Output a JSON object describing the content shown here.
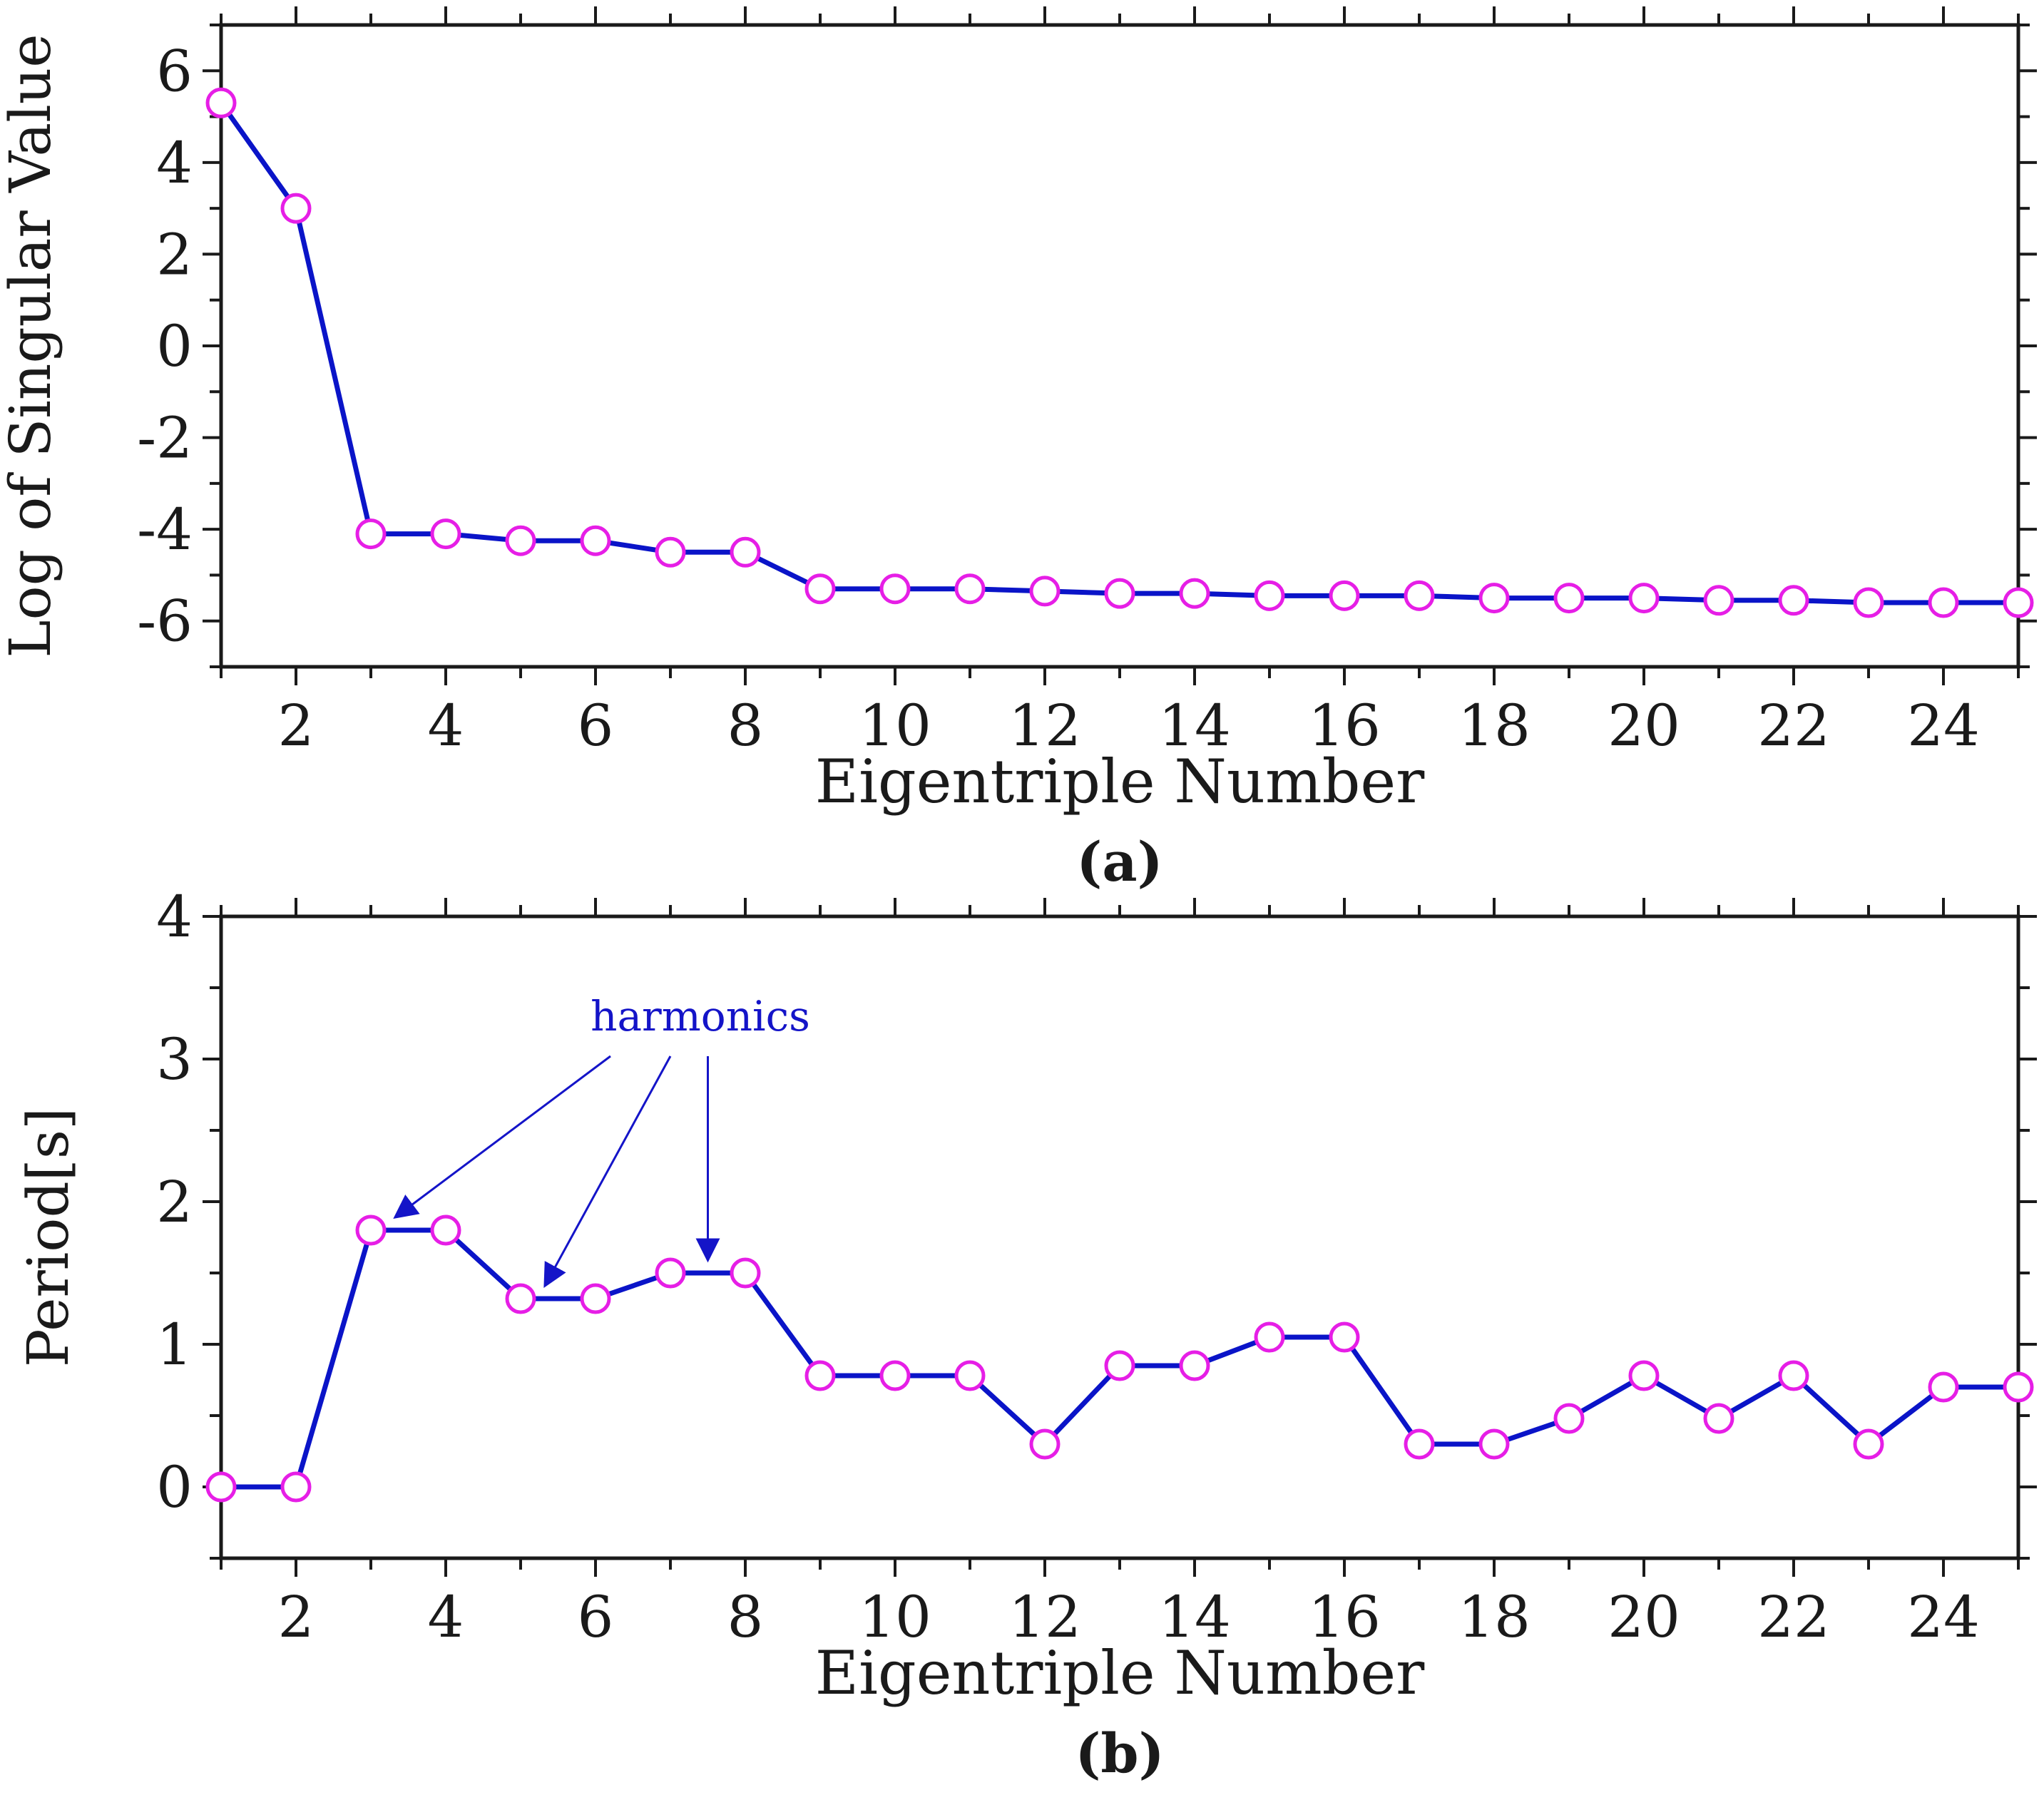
{
  "chart_data": [
    {
      "type": "line",
      "panel_label": "(a)",
      "xlabel": "Eigentriple Number",
      "ylabel": "Log of Singular Value",
      "x": [
        1,
        2,
        3,
        4,
        5,
        6,
        7,
        8,
        9,
        10,
        11,
        12,
        13,
        14,
        15,
        16,
        17,
        18,
        19,
        20,
        21,
        22,
        23,
        24,
        25
      ],
      "series": [
        {
          "name": "Log of Singular Value",
          "values": [
            5.3,
            3.0,
            -4.1,
            -4.1,
            -4.25,
            -4.25,
            -4.5,
            -4.5,
            -5.3,
            -5.3,
            -5.3,
            -5.35,
            -5.4,
            -5.4,
            -5.45,
            -5.45,
            -5.45,
            -5.5,
            -5.5,
            -5.5,
            -5.55,
            -5.55,
            -5.6,
            -5.6,
            -5.6
          ]
        }
      ],
      "xlim": [
        1,
        25
      ],
      "ylim": [
        -7,
        7
      ],
      "xticks": [
        2,
        4,
        6,
        8,
        10,
        12,
        14,
        16,
        18,
        20,
        22,
        24
      ],
      "yticks": [
        -6,
        -4,
        -2,
        0,
        2,
        4,
        6
      ],
      "xtick_labels": [
        "2",
        "4",
        "6",
        "8",
        "10",
        "12",
        "14",
        "16",
        "18",
        "20",
        "22",
        "24"
      ],
      "ytick_labels": [
        "-6",
        "-4",
        "-2",
        "0",
        "2",
        "4",
        "6"
      ]
    },
    {
      "type": "line",
      "panel_label": "(b)",
      "xlabel": "Eigentriple Number",
      "ylabel": "Period[s]",
      "x": [
        1,
        2,
        3,
        4,
        5,
        6,
        7,
        8,
        9,
        10,
        11,
        12,
        13,
        14,
        15,
        16,
        17,
        18,
        19,
        20,
        21,
        22,
        23,
        24,
        25
      ],
      "series": [
        {
          "name": "Period",
          "values": [
            0.0,
            0.0,
            1.8,
            1.8,
            1.32,
            1.32,
            1.5,
            1.5,
            0.78,
            0.78,
            0.78,
            0.3,
            0.85,
            0.85,
            1.05,
            1.05,
            0.3,
            0.3,
            0.48,
            0.78,
            0.48,
            0.78,
            0.3,
            0.7,
            0.7
          ]
        }
      ],
      "xlim": [
        1,
        25
      ],
      "ylim": [
        -0.5,
        4
      ],
      "xticks": [
        2,
        4,
        6,
        8,
        10,
        12,
        14,
        16,
        18,
        20,
        22,
        24
      ],
      "yticks": [
        0,
        1,
        2,
        3,
        4
      ],
      "xtick_labels": [
        "2",
        "4",
        "6",
        "8",
        "10",
        "12",
        "14",
        "16",
        "18",
        "20",
        "22",
        "24"
      ],
      "ytick_labels": [
        "0",
        "1",
        "2",
        "3",
        "4"
      ],
      "annotation": {
        "text": "harmonics",
        "targets": [
          {
            "x": 3.4,
            "y": 1.8
          },
          {
            "x": 5.4,
            "y": 1.32
          },
          {
            "x": 7.5,
            "y": 1.5
          }
        ]
      }
    }
  ],
  "colors": {
    "line": "#0a14c8",
    "marker_edge": "#e61ee6",
    "marker_fill": "#ffffff",
    "axis": "#1a1a1a",
    "annotation": "#1414c8"
  }
}
